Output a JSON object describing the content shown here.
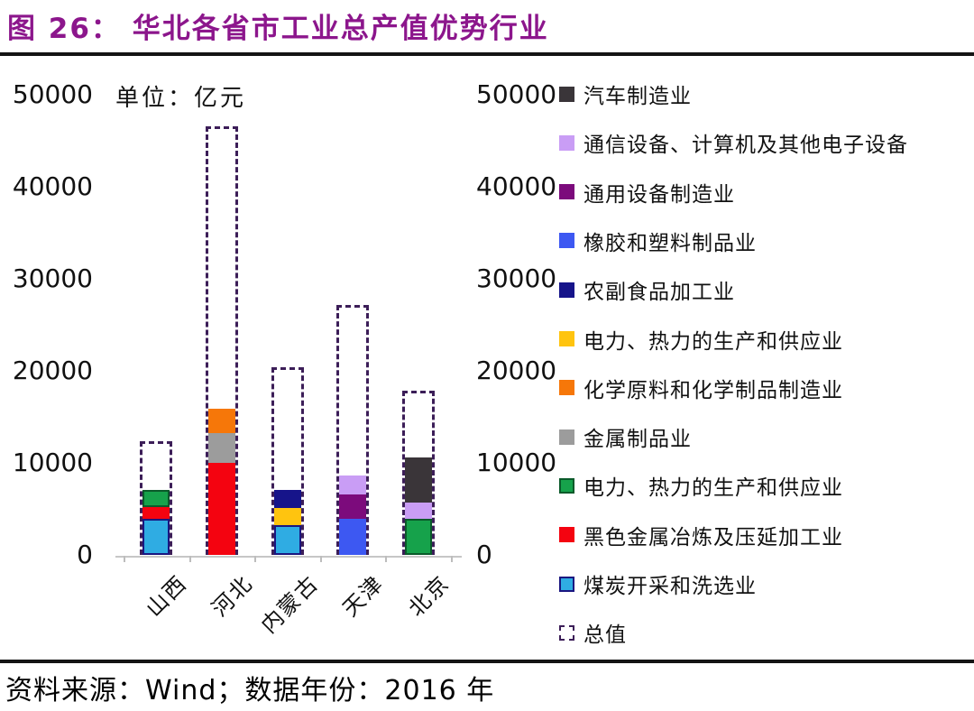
{
  "figure": {
    "title": "图 26：  华北各省市工业总产值优势行业",
    "source": "资料来源：Wind；数据年份：2016 年"
  },
  "chart_data": {
    "type": "bar",
    "stacked": true,
    "title": "华北各省市工业总产值优势行业",
    "unit_label": "单位：亿元",
    "ylabel": "亿元",
    "ylim": [
      0,
      50000
    ],
    "yticks": [
      0,
      10000,
      20000,
      30000,
      40000,
      50000
    ],
    "dual_axis": true,
    "grid": false,
    "legend_position": "right",
    "categories": [
      "山西",
      "河北",
      "内蒙古",
      "天津",
      "北京"
    ],
    "legend": [
      {
        "id": "auto",
        "label": "汽车制造业",
        "color": "#3A3539",
        "style": "solid"
      },
      {
        "id": "comm",
        "label": "通信设备、计算机及其他电子设备",
        "color": "#C99DF5",
        "style": "solid"
      },
      {
        "id": "general_equip",
        "label": "通用设备制造业",
        "color": "#7C0B7C",
        "style": "solid"
      },
      {
        "id": "rubber",
        "label": "橡胶和塑料制品业",
        "color": "#3D58F2",
        "style": "solid"
      },
      {
        "id": "agrifood",
        "label": "农副食品加工业",
        "color": "#16148A",
        "style": "solid"
      },
      {
        "id": "power_yellow",
        "label": "电力、热力的生产和供应业",
        "color": "#FFC40F",
        "style": "solid"
      },
      {
        "id": "chemical",
        "label": "化学原料和化学制品制造业",
        "color": "#F67709",
        "style": "solid"
      },
      {
        "id": "metal",
        "label": "金属制品业",
        "color": "#9C9C9C",
        "style": "solid"
      },
      {
        "id": "power_green",
        "label": "电力、热力的生产和供应业",
        "color": "#16A24B",
        "border": "#0A5A2A",
        "style": "solid"
      },
      {
        "id": "ferrous",
        "label": "黑色金属冶炼及压延加工业",
        "color": "#F40310",
        "style": "solid"
      },
      {
        "id": "coal",
        "label": "煤炭开采和洗选业",
        "color": "#2FACE3",
        "border": "#1A1680",
        "style": "solid"
      },
      {
        "id": "total",
        "label": "总值",
        "color": "#3C1E58",
        "style": "dashed"
      }
    ],
    "bars": [
      {
        "category": "山西",
        "total": 12400,
        "segments": [
          {
            "id": "coal",
            "value": 3900
          },
          {
            "id": "ferrous",
            "value": 1300
          },
          {
            "id": "power_green",
            "value": 1850
          }
        ]
      },
      {
        "category": "河北",
        "total": 46600,
        "segments": [
          {
            "id": "ferrous",
            "value": 10000
          },
          {
            "id": "metal",
            "value": 3250
          },
          {
            "id": "chemical",
            "value": 2650
          }
        ]
      },
      {
        "category": "内蒙古",
        "total": 20400,
        "segments": [
          {
            "id": "coal",
            "value": 3250
          },
          {
            "id": "power_yellow",
            "value": 1850
          },
          {
            "id": "agrifood",
            "value": 1950
          }
        ]
      },
      {
        "category": "天津",
        "total": 27200,
        "segments": [
          {
            "id": "rubber",
            "value": 3900
          },
          {
            "id": "general_equip",
            "value": 2650
          },
          {
            "id": "comm",
            "value": 2050
          }
        ]
      },
      {
        "category": "北京",
        "total": 17800,
        "segments": [
          {
            "id": "power_green",
            "value": 3900
          },
          {
            "id": "comm",
            "value": 1750
          },
          {
            "id": "auto",
            "value": 4900
          }
        ]
      }
    ]
  }
}
